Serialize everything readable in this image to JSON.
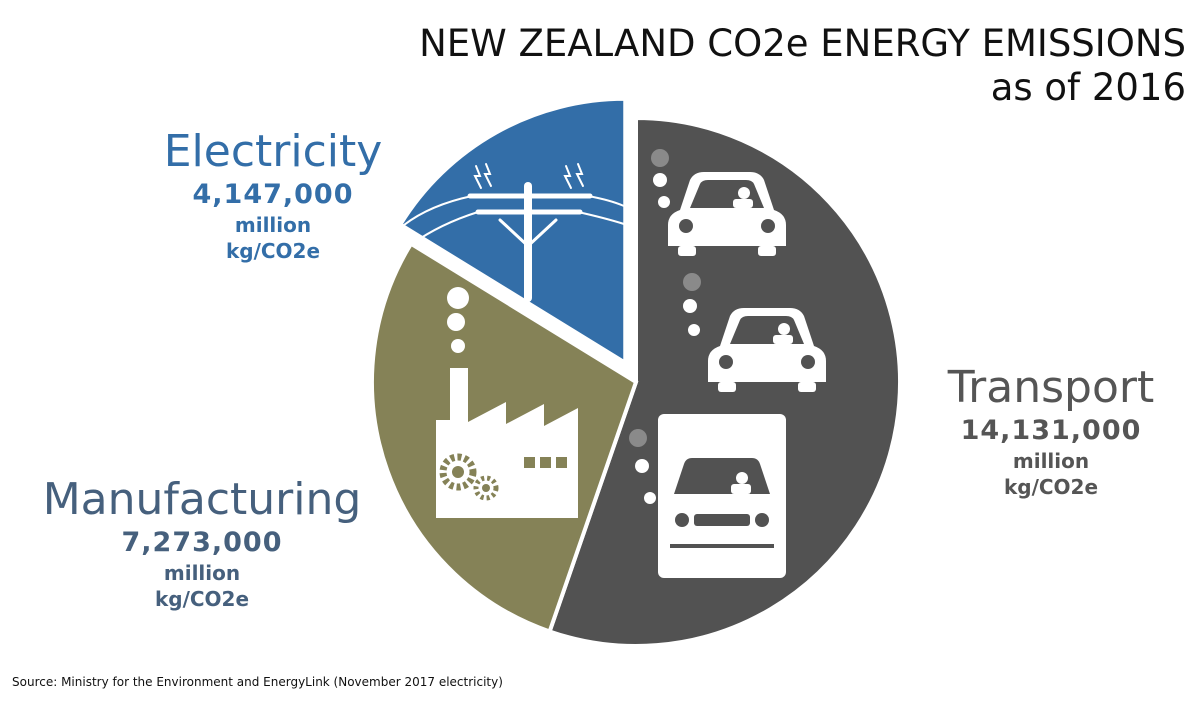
{
  "title_line1": "NEW ZEALAND CO2e ENERGY EMISSIONS",
  "title_line2": "as of 2016",
  "source": "Source: Ministry for the Environment and EnergyLink (November 2017 electricity)",
  "colors": {
    "electricity": "#336ea8",
    "manufacturing": "#858257",
    "transport": "#525252"
  },
  "chart_data": {
    "type": "pie",
    "title": "NEW ZEALAND CO2e ENERGY EMISSIONS as of 2016",
    "unit": "million kg/CO2e",
    "slices": [
      {
        "label": "Transport",
        "value": 14131000,
        "value_text": "14,131,000",
        "unit_line1": "million",
        "unit_line2": "kg/CO2e",
        "color": "#525252",
        "icon": "vehicles-icon",
        "exploded": false
      },
      {
        "label": "Manufacturing",
        "value": 7273000,
        "value_text": "7,273,000",
        "unit_line1": "million",
        "unit_line2": "kg/CO2e",
        "color": "#858257",
        "icon": "factory-icon",
        "exploded": false
      },
      {
        "label": "Electricity",
        "value": 4147000,
        "value_text": "4,147,000",
        "unit_line1": "million",
        "unit_line2": "kg/CO2e",
        "color": "#336ea8",
        "icon": "power-pole-icon",
        "exploded": true
      }
    ]
  }
}
